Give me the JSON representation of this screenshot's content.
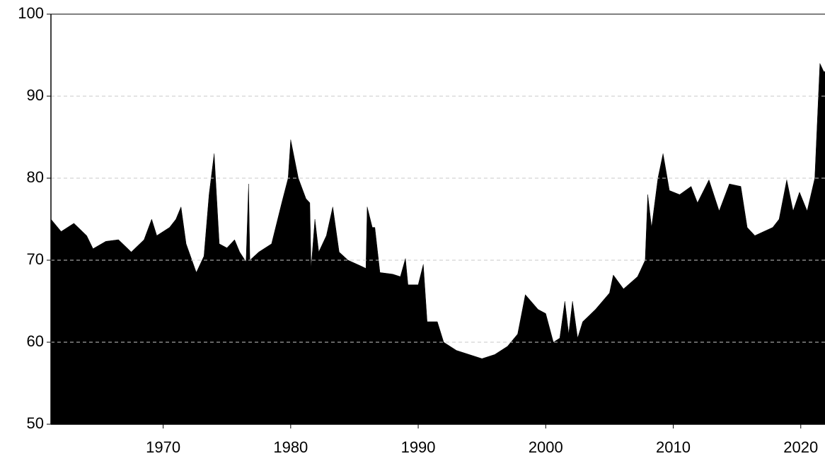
{
  "chart_data": {
    "type": "area",
    "color": "#000000",
    "grid": true,
    "xlim": [
      1961.2,
      2021.9
    ],
    "xticks": [
      1970,
      1980,
      1990,
      2000,
      2010,
      2020
    ],
    "ylim": [
      50,
      100
    ],
    "yticks": [
      50,
      60,
      70,
      80,
      90,
      100
    ],
    "x": [
      1961.2,
      1962,
      1963,
      1964,
      1964.5,
      1965.5,
      1966.5,
      1967.5,
      1968.5,
      1969.1,
      1969.5,
      1970.5,
      1971,
      1971.4,
      1971.8,
      1972.6,
      1973.2,
      1973.6,
      1974,
      1974.4,
      1975,
      1975.6,
      1976,
      1976.5,
      1976.7,
      1976.8,
      1977.5,
      1978.5,
      1979.3,
      1979.8,
      1980.0,
      1980.6,
      1981.2,
      1981.5,
      1981.6,
      1981.9,
      1982.2,
      1982.8,
      1983.3,
      1983.8,
      1984.5,
      1985.5,
      1985.9,
      1986.0,
      1986.4,
      1986.6,
      1987.0,
      1988,
      1988.6,
      1989.0,
      1989.2,
      1990.0,
      1990.4,
      1990.7,
      1991.5,
      1992,
      1993,
      1994,
      1995,
      1996,
      1997,
      1997.8,
      1998.4,
      1999.4,
      2000.0,
      2000.6,
      2001.1,
      2001.5,
      2001.8,
      2002.1,
      2002.5,
      2002.9,
      2003.9,
      2005.0,
      2005.3,
      2006.1,
      2007.2,
      2007.8,
      2008.0,
      2008.3,
      2008.8,
      2009.2,
      2009.7,
      2010.5,
      2011.4,
      2011.9,
      2012.8,
      2013.6,
      2014.4,
      2015.3,
      2015.8,
      2016.4,
      2017.8,
      2018.3,
      2018.9,
      2019.4,
      2019.9,
      2020.5,
      2021.1,
      2021.5,
      2021.8,
      2021.9
    ],
    "values": [
      75,
      73.5,
      74.5,
      73,
      71.4,
      72.3,
      72.5,
      71,
      72.5,
      75,
      73,
      74,
      75,
      76.5,
      72,
      68.5,
      70.5,
      78,
      83,
      72,
      71.5,
      72.5,
      71,
      69.8,
      79.3,
      70,
      71,
      72,
      77,
      80,
      84.7,
      80,
      77.5,
      77,
      69,
      75,
      71,
      73,
      76.5,
      71,
      70,
      69.3,
      69,
      76.5,
      74,
      74,
      68.5,
      68.3,
      68,
      70.2,
      67,
      67,
      69.5,
      62.5,
      62.5,
      60,
      59,
      58.5,
      58,
      58.5,
      59.5,
      61,
      65.8,
      64,
      63.5,
      60,
      60.5,
      65,
      61,
      65,
      60.5,
      62.5,
      64,
      66,
      68.2,
      66.5,
      68,
      70,
      78,
      74,
      80,
      83,
      78.5,
      78,
      79,
      77,
      79.8,
      76,
      79.3,
      79,
      74,
      73,
      74,
      75,
      79.8,
      76,
      78.3,
      76,
      80,
      94,
      93,
      93
    ]
  }
}
